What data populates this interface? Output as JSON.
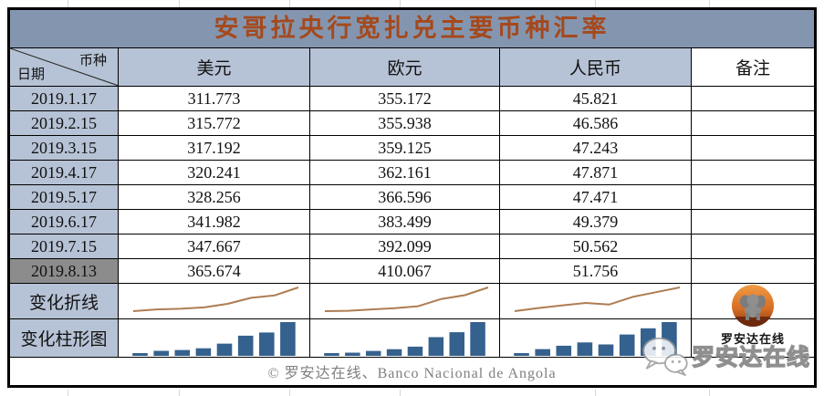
{
  "title": "安哥拉央行宽扎兑主要币种汇率",
  "header": {
    "date_label": "日期",
    "currency_label": "币种",
    "columns": [
      "美元",
      "欧元",
      "人民币",
      "备注"
    ]
  },
  "labels": {
    "line_row": "变化折线",
    "bar_row": "变化柱形图"
  },
  "table_state": {
    "highlighted_date": "2019.8.13"
  },
  "footer": {
    "credit": "© 罗安达在线、Banco Nacional de Angola"
  },
  "logo": {
    "name": "罗安达在线"
  },
  "watermark": {
    "text": "罗安达在线",
    "icon": "wechat-icon"
  },
  "colors": {
    "title_bg": "#8496AF",
    "title_text": "#A5491D",
    "header_bg": "#B6C2D5",
    "highlight_bg": "#8C8C8C",
    "sparkline_line": "#AE7D52",
    "sparkline_bar": "#35618E",
    "footer_text": "#7F7F7F"
  },
  "chart_data": {
    "type": "table",
    "title": "安哥拉央行宽扎兑主要币种汇率",
    "categories": [
      "2019.1.17",
      "2019.2.15",
      "2019.3.15",
      "2019.4.17",
      "2019.5.17",
      "2019.6.17",
      "2019.7.15",
      "2019.8.13"
    ],
    "series": [
      {
        "key": "usd",
        "name": "美元",
        "values": [
          311.773,
          315.772,
          317.192,
          320.241,
          328.256,
          341.982,
          347.667,
          365.674
        ]
      },
      {
        "key": "eur",
        "name": "欧元",
        "values": [
          355.172,
          355.938,
          359.125,
          362.161,
          366.596,
          383.499,
          392.099,
          410.067
        ]
      },
      {
        "key": "rmb",
        "name": "人民币",
        "values": [
          45.821,
          46.586,
          47.243,
          47.871,
          47.471,
          49.379,
          50.562,
          51.756
        ]
      }
    ],
    "sparkline_rows": [
      {
        "label": "变化折线",
        "type": "line"
      },
      {
        "label": "变化柱形图",
        "type": "bar"
      }
    ],
    "legend_position": "none",
    "grid": false
  }
}
